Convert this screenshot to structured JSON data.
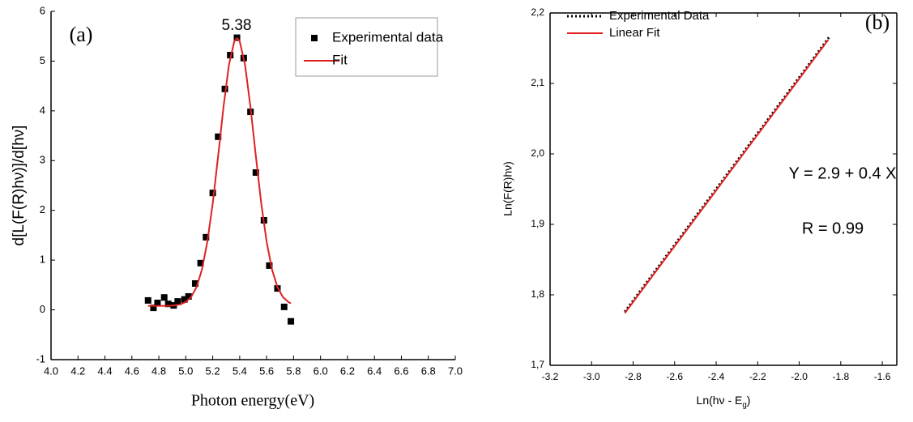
{
  "chart_data": [
    {
      "type": "scatter-fit",
      "xlabel": "Photon energy(eV)",
      "ylabel": "d[L(F(R)hν)]/d[hν]",
      "xlim": [
        4.0,
        7.0
      ],
      "xticks": [
        {
          "value": 4.0,
          "label": "4.0"
        },
        4.2,
        4.4,
        4.6,
        4.8,
        {
          "value": 5.0,
          "label": "5.0"
        },
        5.2,
        5.4,
        5.6,
        5.8,
        {
          "value": 6.0,
          "label": "6.0"
        },
        6.2,
        6.4,
        6.6,
        6.8,
        {
          "value": 7.0,
          "label": "7.0"
        }
      ],
      "ylim": [
        -1,
        6
      ],
      "yticks": [
        -1,
        0,
        1,
        2,
        3,
        4,
        5,
        6
      ],
      "frame": false,
      "legend": "upper right",
      "legend_frame": true,
      "annotations": [
        {
          "text": "(a)",
          "color": "#000000"
        },
        {
          "text": "5.38",
          "color": "#e02020"
        }
      ],
      "series": [
        {
          "name": "Experimental data",
          "color": "#000000",
          "style": "markers",
          "x": [
            4.72,
            4.76,
            4.79,
            4.84,
            4.87,
            4.91,
            4.94,
            4.99,
            5.02,
            5.07,
            5.11,
            5.15,
            5.2,
            5.24,
            5.29,
            5.33,
            5.38,
            5.43,
            5.48,
            5.52,
            5.58,
            5.62,
            5.68,
            5.73,
            5.78
          ],
          "values": [
            0.19,
            0.04,
            0.14,
            0.25,
            0.12,
            0.09,
            0.17,
            0.21,
            0.27,
            0.53,
            0.94,
            1.46,
            2.35,
            3.48,
            4.44,
            5.12,
            5.47,
            5.06,
            3.98,
            2.76,
            1.8,
            0.89,
            0.43,
            0.06,
            -0.23
          ]
        },
        {
          "name": "Fit",
          "color": "#e02020",
          "style": "line",
          "x": [
            4.72,
            4.8,
            4.88,
            4.96,
            5.0,
            5.04,
            5.08,
            5.12,
            5.16,
            5.2,
            5.24,
            5.28,
            5.32,
            5.36,
            5.38,
            5.4,
            5.44,
            5.48,
            5.52,
            5.56,
            5.6,
            5.64,
            5.68,
            5.72,
            5.76,
            5.78
          ],
          "values": [
            0.08,
            0.08,
            0.08,
            0.11,
            0.16,
            0.26,
            0.46,
            0.81,
            1.37,
            2.14,
            3.09,
            4.08,
            4.92,
            5.4,
            5.46,
            5.4,
            4.92,
            4.08,
            3.09,
            2.14,
            1.37,
            0.81,
            0.46,
            0.26,
            0.16,
            0.13
          ]
        }
      ]
    },
    {
      "type": "line",
      "xlabel": [
        "Ln(hν - E",
        "g",
        ")"
      ],
      "ylabel": "Ln(F(R)hν)",
      "xlim": [
        -3.2,
        -1.53
      ],
      "xticks": [
        -3.2,
        {
          "value": -3.0,
          "label": "-3.0"
        },
        -2.8,
        -2.6,
        -2.4,
        -2.2,
        {
          "value": -2.0,
          "label": "-2.0"
        },
        -1.8,
        -1.6
      ],
      "ylim": [
        1.7,
        2.2
      ],
      "yticks": [
        {
          "value": 1.7,
          "label": "1,7"
        },
        {
          "value": 1.8,
          "label": "1,8"
        },
        {
          "value": 1.9,
          "label": "1,9"
        },
        {
          "value": 2.0,
          "label": "2,0"
        },
        {
          "value": 2.1,
          "label": "2,1"
        },
        {
          "value": 2.2,
          "label": "2,2"
        }
      ],
      "frame": true,
      "legend": "upper left",
      "legend_frame": false,
      "annotations": [
        {
          "text": "(b)",
          "color": "#000000"
        },
        {
          "text": "Y = 2.9 + 0.4 X",
          "color": "#e02020"
        },
        {
          "text": "R = 0.99",
          "color": "#e02020"
        }
      ],
      "series": [
        {
          "name": "Experimental Data",
          "color": "#000000",
          "style": "dotted",
          "x": [
            -2.84,
            -1.85
          ],
          "values": [
            1.776,
            2.168
          ]
        },
        {
          "name": "Linear Fit",
          "color": "#e02020",
          "style": "line",
          "x": [
            -2.84,
            -1.86
          ],
          "values": [
            1.774,
            2.162
          ]
        }
      ]
    }
  ]
}
